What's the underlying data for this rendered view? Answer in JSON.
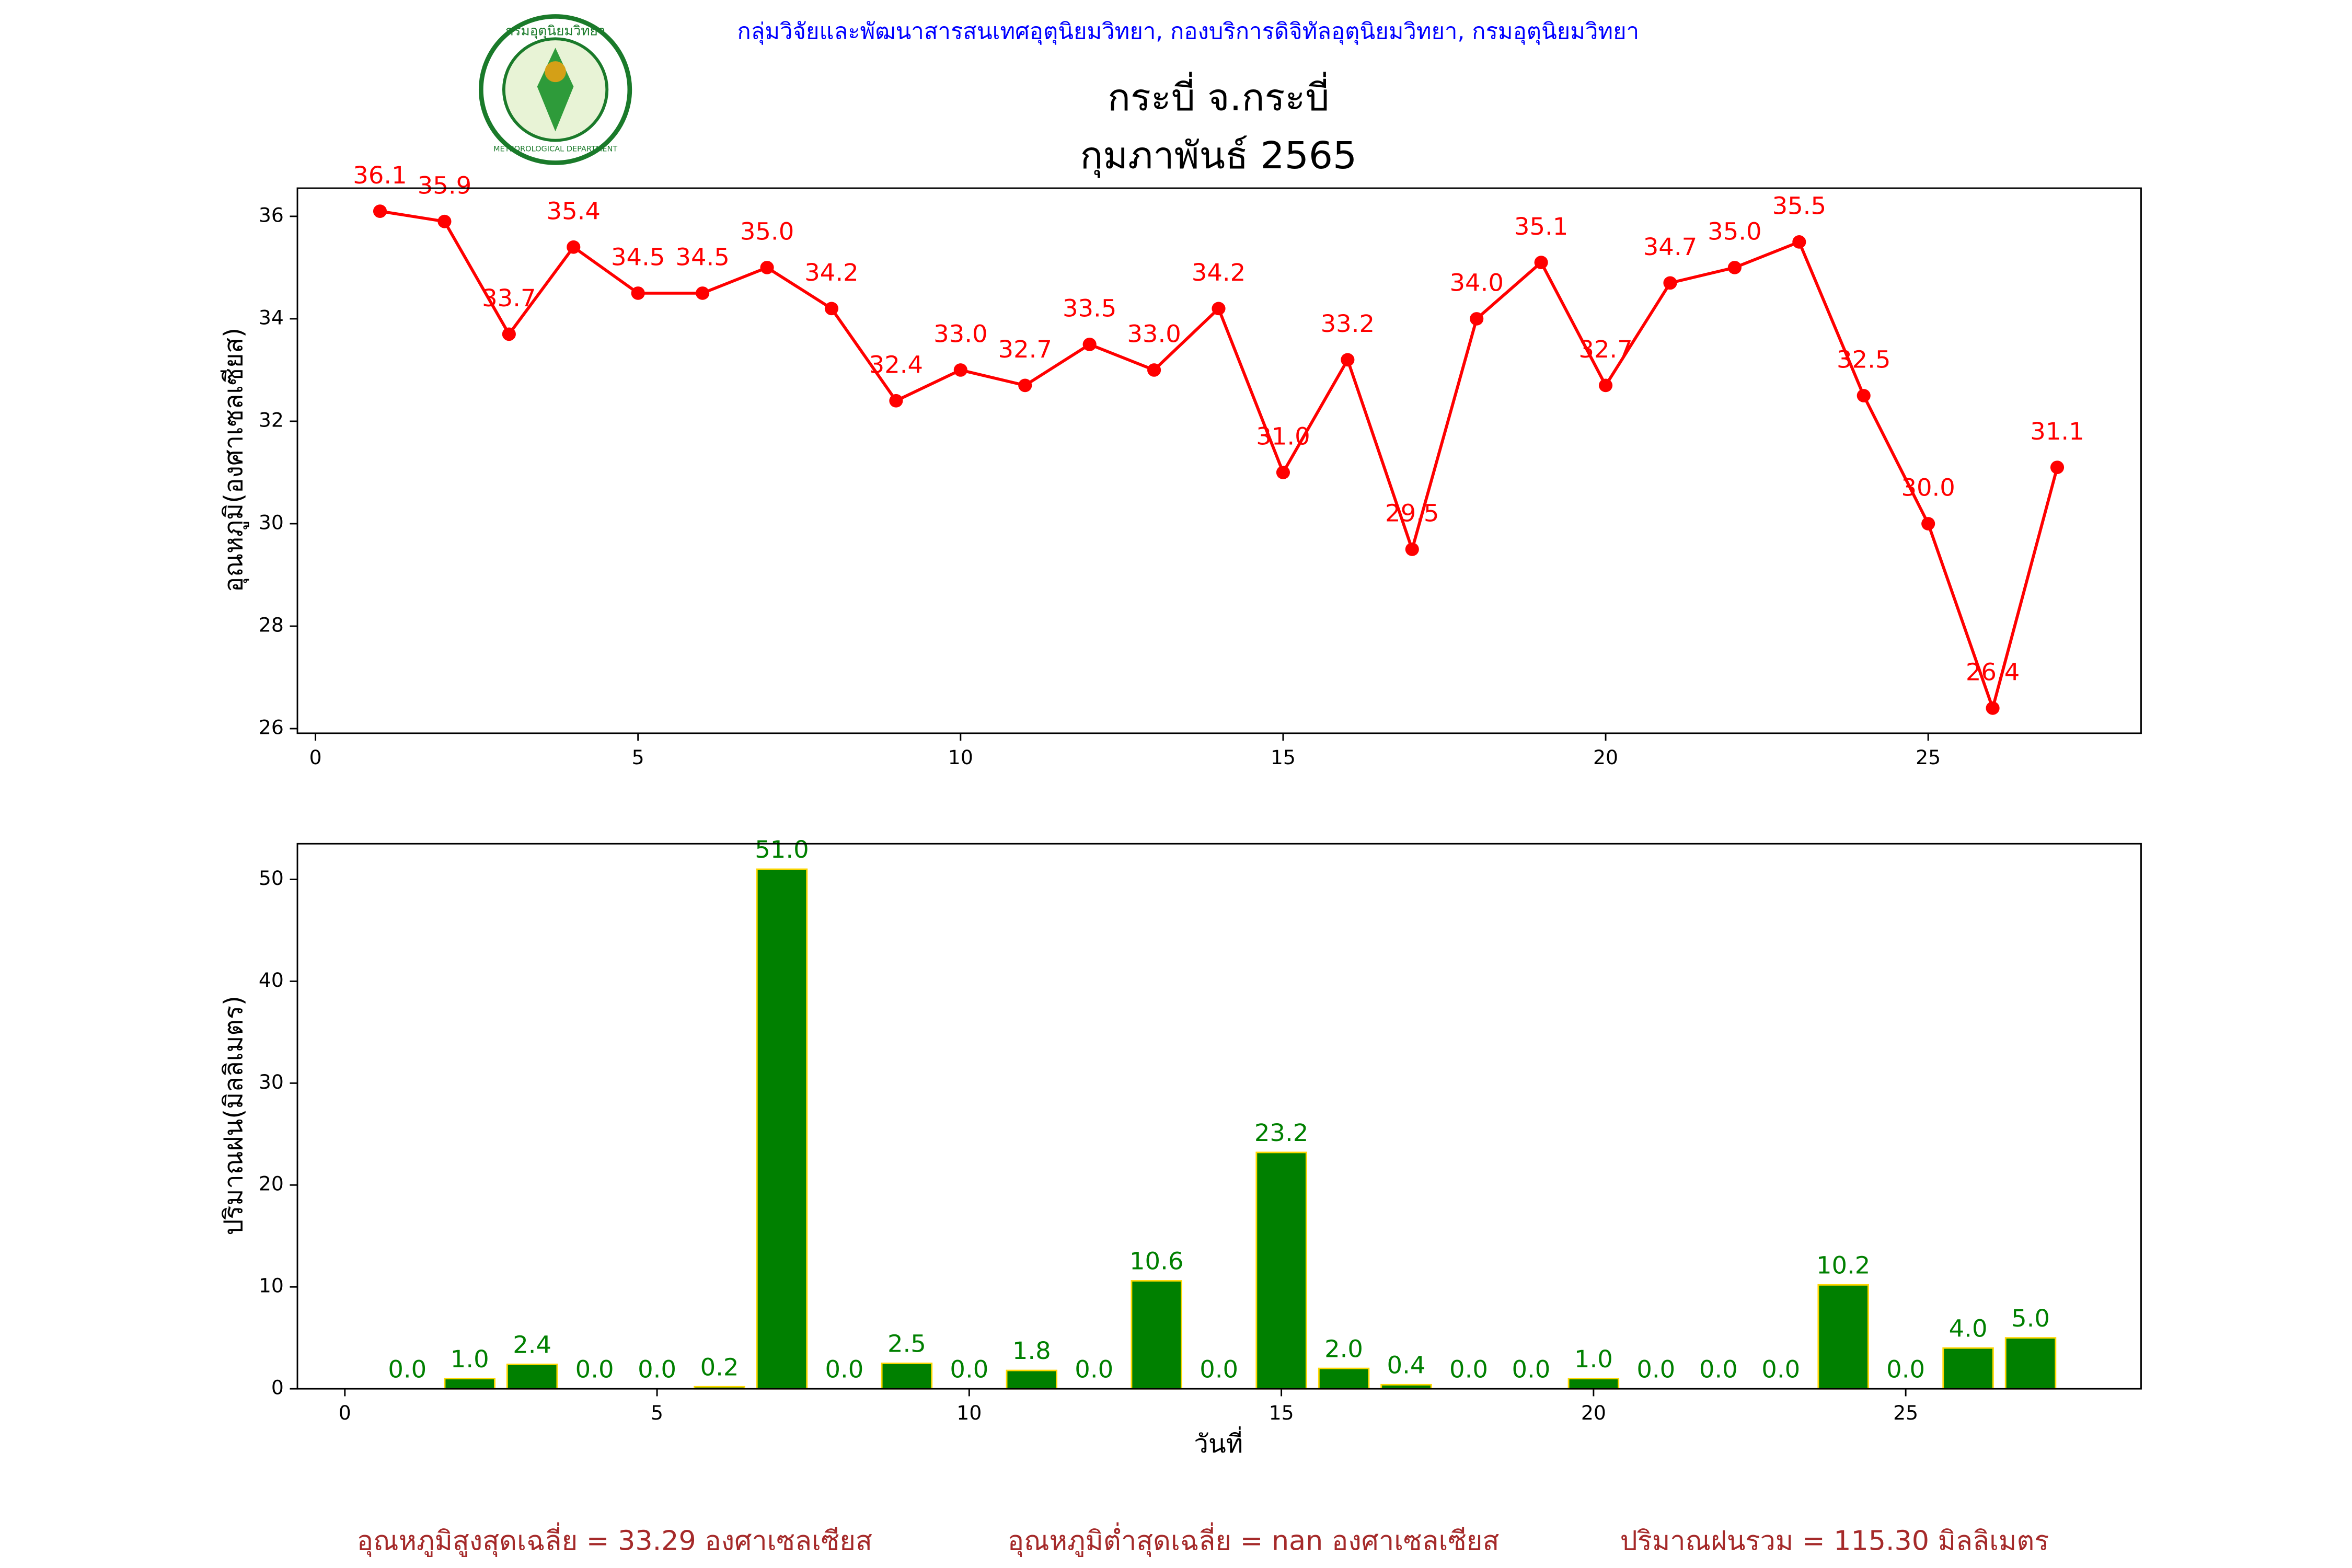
{
  "header": "กลุ่มวิจัยและพัฒนาสารสนเทศอุตุนิยมวิทยา, กองบริการดิจิทัลอุตุนิยมวิทยา, กรมอุตุนิยมวิทยา",
  "logo": {
    "top_text": "กรมอุตุนิยมวิทยา",
    "bottom_text": "METEOROLOGICAL DEPARTMENT"
  },
  "chart_data": [
    {
      "type": "line",
      "title": "กระบี่ จ.กระบี่",
      "subtitle": "กุมภาพันธ์ 2565",
      "y_label": "อุณหภูมิ(องศาเซลเซียส)",
      "color": "#ff0000",
      "x": [
        1,
        2,
        3,
        4,
        5,
        6,
        7,
        8,
        9,
        10,
        11,
        12,
        13,
        14,
        15,
        16,
        17,
        18,
        19,
        20,
        21,
        22,
        23,
        24,
        25,
        26,
        27
      ],
      "values": [
        36.1,
        35.9,
        33.7,
        35.4,
        34.5,
        34.5,
        35.0,
        34.2,
        32.4,
        33.0,
        32.7,
        33.5,
        33.0,
        34.2,
        31.0,
        33.2,
        29.5,
        34.0,
        35.1,
        32.7,
        34.7,
        35.0,
        35.5,
        32.5,
        30.0,
        26.4,
        31.1
      ],
      "value_labels": [
        "36.1",
        "35.9",
        "33.7",
        "35.4",
        "34.5",
        "34.5",
        "35.0",
        "34.2",
        "32.4",
        "33.0",
        "32.7",
        "33.5",
        "33.0",
        "34.2",
        "31.0",
        "33.2",
        "29.5",
        "34.0",
        "35.1",
        "32.7",
        "34.7",
        "35.0",
        "35.5",
        "32.5",
        "30.0",
        "26.4",
        "31.1"
      ],
      "xlim": [
        -0.28,
        28.3
      ],
      "ylim": [
        25.91,
        36.55
      ],
      "xticks": [
        0,
        5,
        10,
        15,
        20,
        25
      ],
      "yticks": [
        26,
        28,
        30,
        32,
        34,
        36
      ]
    },
    {
      "type": "bar",
      "x_label": "วันที่",
      "y_label": "ปริมาณฝน(มิลลิเมตร)",
      "color": "#008000",
      "edge_color": "#ffd700",
      "x": [
        1,
        2,
        3,
        4,
        5,
        6,
        7,
        8,
        9,
        10,
        11,
        12,
        13,
        14,
        15,
        16,
        17,
        18,
        19,
        20,
        21,
        22,
        23,
        24,
        25,
        26,
        27
      ],
      "values": [
        0.0,
        1.0,
        2.4,
        0.0,
        0.0,
        0.2,
        51.0,
        0.0,
        2.5,
        0.0,
        1.8,
        0.0,
        10.6,
        0.0,
        23.2,
        2.0,
        0.4,
        0.0,
        0.0,
        1.0,
        0.0,
        0.0,
        0.0,
        10.2,
        0.0,
        4.0,
        5.0
      ],
      "value_labels": [
        "0.0",
        "1.0",
        "2.4",
        "0.0",
        "0.0",
        "0.2",
        "51.0",
        "0.0",
        "2.5",
        "0.0",
        "1.8",
        "0.0",
        "10.6",
        "0.0",
        "23.2",
        "2.0",
        "0.4",
        "0.0",
        "0.0",
        "1.0",
        "0.0",
        "0.0",
        "0.0",
        "10.2",
        "0.0",
        "4.0",
        "5.0"
      ],
      "xlim": [
        -0.76,
        28.77
      ],
      "ylim": [
        0,
        53.5
      ],
      "xticks": [
        0,
        5,
        10,
        15,
        20,
        25
      ],
      "yticks": [
        0,
        10,
        20,
        30,
        40,
        50
      ]
    }
  ],
  "footer": [
    "อุณหภูมิสูงสุดเฉลี่ย = 33.29 องศาเซลเซียส",
    "อุณหภูมิต่ำสุดเฉลี่ย = nan องศาเซลเซียส",
    "ปริมาณฝนรวม = 115.30 มิลลิเมตร"
  ]
}
